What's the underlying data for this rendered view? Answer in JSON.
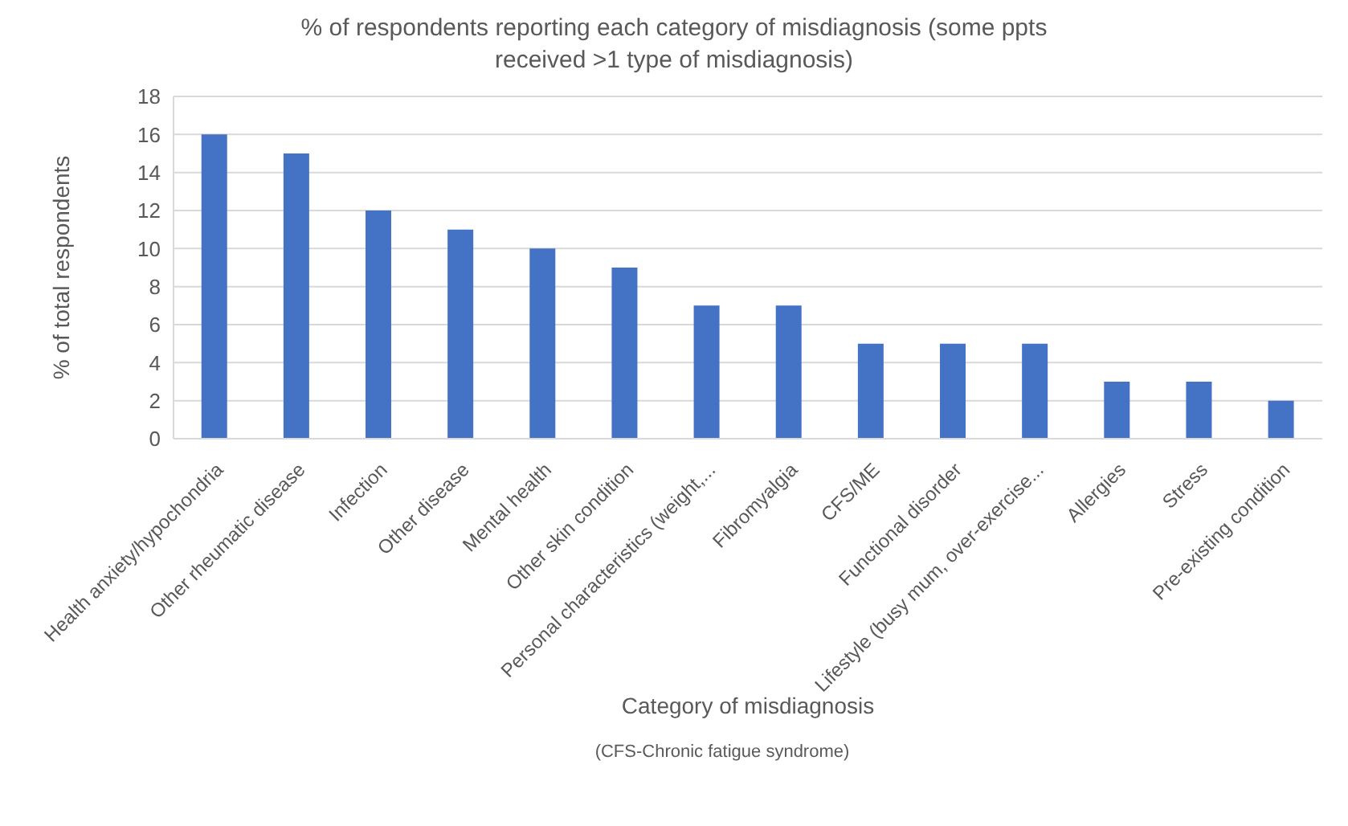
{
  "chart_data": {
    "type": "bar",
    "title": "% of respondents reporting each category of misdiagnosis (some ppts received >1 type of misdiagnosis)",
    "xlabel": "Category of misdiagnosis",
    "ylabel": "% of total respondents",
    "annotations": [
      "(CFS-Chronic fatigue syndrome)"
    ],
    "categories": [
      "Health anxiety/hypochondria",
      "Other rheumatic disease",
      "Infection",
      "Other disease",
      "Mental health",
      "Other skin condition",
      "Personal characteristics (weight,...",
      "Fibromyalgia",
      "CFS/ME",
      "Functional disorder",
      "Lifestyle (busy mum, over-exercise...",
      "Allergies",
      "Stress",
      "Pre-existing condition"
    ],
    "values": [
      16,
      15,
      12,
      11,
      10,
      9,
      7,
      7,
      5,
      5,
      5,
      3,
      3,
      2
    ],
    "color": "#4472c4",
    "ylim": [
      0,
      18
    ],
    "yticks": [
      0,
      2,
      4,
      6,
      8,
      10,
      12,
      14,
      16,
      18
    ],
    "grid": "y"
  }
}
